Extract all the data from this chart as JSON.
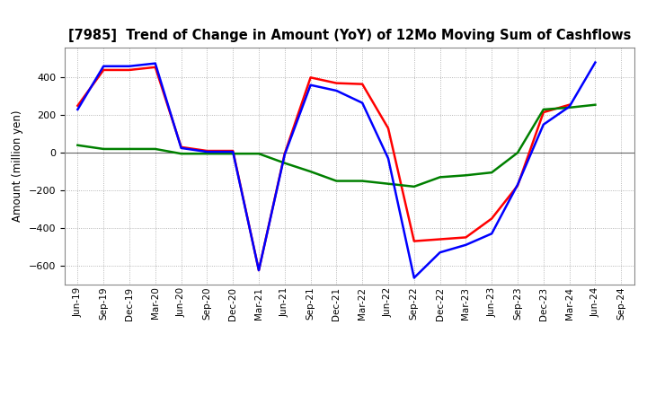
{
  "title": "[7985]  Trend of Change in Amount (YoY) of 12Mo Moving Sum of Cashflows",
  "ylabel": "Amount (million yen)",
  "labels": [
    "Jun-19",
    "Sep-19",
    "Dec-19",
    "Mar-20",
    "Jun-20",
    "Sep-20",
    "Dec-20",
    "Mar-21",
    "Jun-21",
    "Sep-21",
    "Dec-21",
    "Mar-22",
    "Jun-22",
    "Sep-22",
    "Dec-22",
    "Mar-23",
    "Jun-23",
    "Sep-23",
    "Dec-23",
    "Mar-24",
    "Jun-24",
    "Sep-24"
  ],
  "operating": [
    250,
    440,
    440,
    455,
    30,
    10,
    10,
    -625,
    -5,
    400,
    370,
    365,
    130,
    -470,
    -460,
    -450,
    -350,
    -175,
    215,
    255,
    null,
    null
  ],
  "investing": [
    40,
    20,
    20,
    20,
    -5,
    -5,
    -5,
    -5,
    -55,
    -100,
    -150,
    -150,
    -165,
    -180,
    -130,
    -120,
    -105,
    0,
    230,
    240,
    255,
    null
  ],
  "free": [
    230,
    460,
    460,
    475,
    25,
    5,
    5,
    -625,
    -10,
    360,
    330,
    265,
    -30,
    -665,
    -530,
    -490,
    -430,
    -170,
    150,
    245,
    480,
    null
  ],
  "ylim": [
    -700,
    560
  ],
  "yticks": [
    -600,
    -400,
    -200,
    0,
    200,
    400
  ],
  "colors": {
    "operating": "#ff0000",
    "investing": "#008000",
    "free": "#0000ff"
  },
  "background_color": "#ffffff",
  "grid_color": "#999999",
  "linewidth": 1.8
}
